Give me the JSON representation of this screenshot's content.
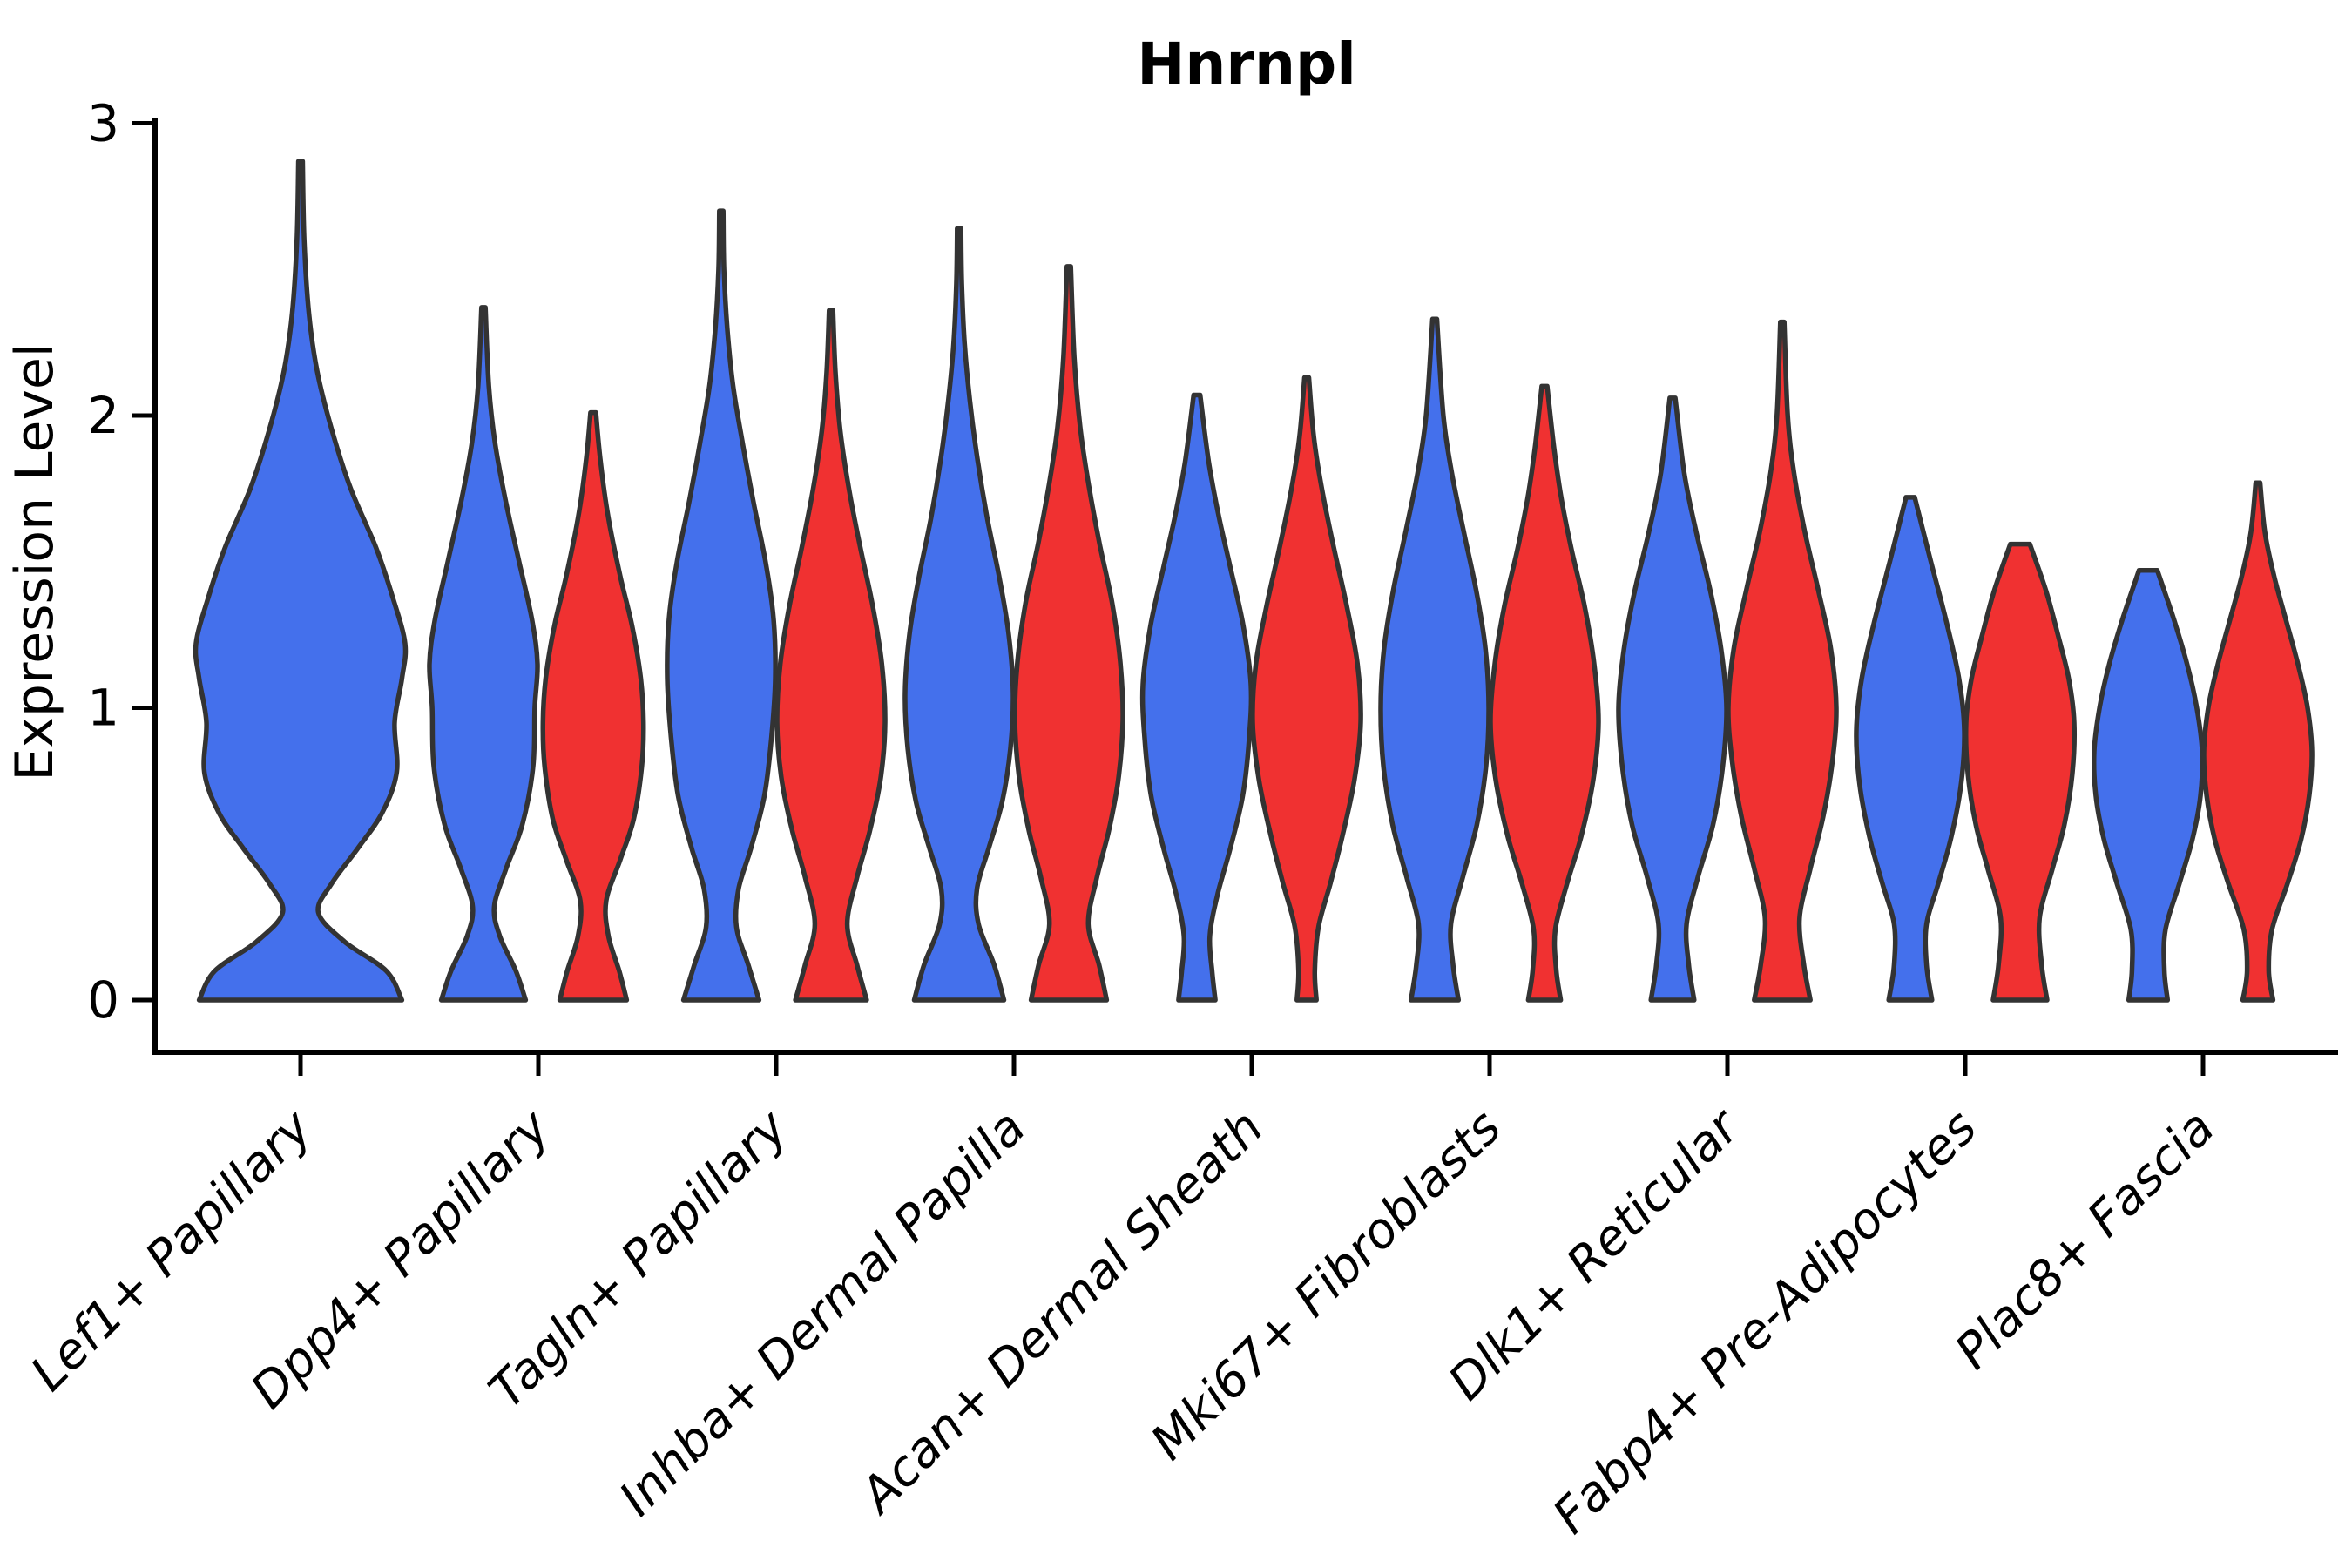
{
  "title": "Hnrnpl",
  "ylabel": "Expression Level",
  "colors": {
    "blue_group": "#4470EC",
    "red_group": "#F03131",
    "violin_outline": "#333333",
    "axis": "#000000",
    "background": "#FFFFFF"
  },
  "chart_data": {
    "type": "violin",
    "title": "Hnrnpl",
    "xlabel": "",
    "ylabel": "Expression Level",
    "ylim": [
      0,
      3
    ],
    "yticks": [
      0,
      1,
      2,
      3
    ],
    "grid": false,
    "legend": null,
    "categories": [
      "Lef1+ Papillary",
      "Dpp4+ Papillary",
      "Tagln+ Papillary",
      "Inhba+ Dermal Papilla",
      "Acan+ Dermal Sheath",
      "Mki67+ Fibroblasts",
      "Dlk1+ Reticular",
      "Fabp4+ Pre-Adipocytes",
      "Plac8+ Fascia"
    ],
    "violins": [
      {
        "category": "Lef1+ Papillary",
        "color_group": "blue",
        "span": "full",
        "max_expression": 2.87,
        "flat_top": false,
        "profile": [
          [
            0,
            0.97
          ],
          [
            0.1,
            0.82
          ],
          [
            0.2,
            0.42
          ],
          [
            0.3,
            0.17
          ],
          [
            0.4,
            0.3
          ],
          [
            0.52,
            0.55
          ],
          [
            0.64,
            0.78
          ],
          [
            0.78,
            0.92
          ],
          [
            0.95,
            0.9
          ],
          [
            1.1,
            0.97
          ],
          [
            1.22,
            1.0
          ],
          [
            1.38,
            0.88
          ],
          [
            1.55,
            0.72
          ],
          [
            1.75,
            0.48
          ],
          [
            1.95,
            0.3
          ],
          [
            2.15,
            0.16
          ],
          [
            2.35,
            0.08
          ],
          [
            2.6,
            0.035
          ],
          [
            2.87,
            0.02
          ]
        ]
      },
      {
        "category": "Dpp4+ Papillary",
        "color_group": "blue",
        "span": "half-left",
        "max_expression": 2.37,
        "flat_top": false,
        "profile": [
          [
            0,
            0.78
          ],
          [
            0.1,
            0.6
          ],
          [
            0.22,
            0.3
          ],
          [
            0.32,
            0.2
          ],
          [
            0.45,
            0.42
          ],
          [
            0.6,
            0.72
          ],
          [
            0.8,
            0.92
          ],
          [
            1.0,
            0.95
          ],
          [
            1.15,
            1.0
          ],
          [
            1.3,
            0.9
          ],
          [
            1.5,
            0.66
          ],
          [
            1.7,
            0.42
          ],
          [
            1.9,
            0.22
          ],
          [
            2.1,
            0.1
          ],
          [
            2.37,
            0.035
          ]
        ]
      },
      {
        "category": "Dpp4+ Papillary",
        "color_group": "red",
        "span": "half-right",
        "max_expression": 2.01,
        "flat_top": false,
        "profile": [
          [
            0,
            0.62
          ],
          [
            0.1,
            0.48
          ],
          [
            0.22,
            0.28
          ],
          [
            0.34,
            0.24
          ],
          [
            0.48,
            0.5
          ],
          [
            0.62,
            0.75
          ],
          [
            0.8,
            0.9
          ],
          [
            0.95,
            0.93
          ],
          [
            1.1,
            0.88
          ],
          [
            1.28,
            0.72
          ],
          [
            1.45,
            0.5
          ],
          [
            1.65,
            0.28
          ],
          [
            1.85,
            0.13
          ],
          [
            2.01,
            0.05
          ]
        ]
      },
      {
        "category": "Tagln+ Papillary",
        "color_group": "blue",
        "span": "half-left",
        "max_expression": 2.7,
        "flat_top": false,
        "profile": [
          [
            0,
            0.7
          ],
          [
            0.12,
            0.5
          ],
          [
            0.25,
            0.28
          ],
          [
            0.38,
            0.32
          ],
          [
            0.52,
            0.55
          ],
          [
            0.7,
            0.8
          ],
          [
            0.9,
            0.93
          ],
          [
            1.1,
            1.0
          ],
          [
            1.3,
            0.97
          ],
          [
            1.5,
            0.82
          ],
          [
            1.7,
            0.6
          ],
          [
            1.9,
            0.4
          ],
          [
            2.1,
            0.22
          ],
          [
            2.3,
            0.11
          ],
          [
            2.5,
            0.05
          ],
          [
            2.7,
            0.02
          ]
        ]
      },
      {
        "category": "Tagln+ Papillary",
        "color_group": "red",
        "span": "half-right",
        "max_expression": 2.36,
        "flat_top": false,
        "profile": [
          [
            0,
            0.66
          ],
          [
            0.12,
            0.48
          ],
          [
            0.26,
            0.3
          ],
          [
            0.42,
            0.48
          ],
          [
            0.58,
            0.72
          ],
          [
            0.76,
            0.92
          ],
          [
            0.95,
            1.0
          ],
          [
            1.15,
            0.94
          ],
          [
            1.35,
            0.77
          ],
          [
            1.55,
            0.54
          ],
          [
            1.75,
            0.33
          ],
          [
            1.95,
            0.17
          ],
          [
            2.15,
            0.08
          ],
          [
            2.36,
            0.03
          ]
        ]
      },
      {
        "category": "Inhba+ Dermal Papilla",
        "color_group": "blue",
        "span": "half-left",
        "max_expression": 2.64,
        "flat_top": false,
        "profile": [
          [
            0,
            0.83
          ],
          [
            0.12,
            0.65
          ],
          [
            0.26,
            0.36
          ],
          [
            0.38,
            0.33
          ],
          [
            0.52,
            0.55
          ],
          [
            0.68,
            0.8
          ],
          [
            0.86,
            0.95
          ],
          [
            1.05,
            1.0
          ],
          [
            1.25,
            0.92
          ],
          [
            1.45,
            0.74
          ],
          [
            1.65,
            0.52
          ],
          [
            1.85,
            0.34
          ],
          [
            2.05,
            0.2
          ],
          [
            2.25,
            0.1
          ],
          [
            2.45,
            0.05
          ],
          [
            2.64,
            0.02
          ]
        ]
      },
      {
        "category": "Inhba+ Dermal Papilla",
        "color_group": "red",
        "span": "half-right",
        "max_expression": 2.51,
        "flat_top": false,
        "profile": [
          [
            0,
            0.7
          ],
          [
            0.12,
            0.56
          ],
          [
            0.26,
            0.36
          ],
          [
            0.42,
            0.52
          ],
          [
            0.58,
            0.74
          ],
          [
            0.76,
            0.92
          ],
          [
            0.96,
            1.0
          ],
          [
            1.16,
            0.95
          ],
          [
            1.36,
            0.8
          ],
          [
            1.56,
            0.57
          ],
          [
            1.76,
            0.37
          ],
          [
            1.96,
            0.21
          ],
          [
            2.2,
            0.1
          ],
          [
            2.51,
            0.03
          ]
        ]
      },
      {
        "category": "Acan+ Dermal Sheath",
        "color_group": "blue",
        "span": "half-left",
        "max_expression": 2.07,
        "flat_top": false,
        "profile": [
          [
            0,
            0.34
          ],
          [
            0.1,
            0.28
          ],
          [
            0.22,
            0.24
          ],
          [
            0.36,
            0.38
          ],
          [
            0.52,
            0.62
          ],
          [
            0.7,
            0.85
          ],
          [
            0.9,
            0.97
          ],
          [
            1.08,
            1.0
          ],
          [
            1.28,
            0.86
          ],
          [
            1.48,
            0.62
          ],
          [
            1.66,
            0.4
          ],
          [
            1.84,
            0.22
          ],
          [
            2.07,
            0.06
          ]
        ]
      },
      {
        "category": "Acan+ Dermal Sheath",
        "color_group": "red",
        "span": "half-right",
        "max_expression": 2.13,
        "flat_top": false,
        "profile": [
          [
            0,
            0.18
          ],
          [
            0.1,
            0.15
          ],
          [
            0.25,
            0.22
          ],
          [
            0.4,
            0.44
          ],
          [
            0.56,
            0.66
          ],
          [
            0.75,
            0.88
          ],
          [
            0.95,
            1.0
          ],
          [
            1.15,
            0.94
          ],
          [
            1.35,
            0.74
          ],
          [
            1.55,
            0.5
          ],
          [
            1.75,
            0.28
          ],
          [
            1.93,
            0.13
          ],
          [
            2.13,
            0.04
          ]
        ]
      },
      {
        "category": "Mki67+ Fibroblasts",
        "color_group": "blue",
        "span": "half-left",
        "max_expression": 2.33,
        "flat_top": false,
        "profile": [
          [
            0,
            0.44
          ],
          [
            0.12,
            0.34
          ],
          [
            0.26,
            0.3
          ],
          [
            0.42,
            0.52
          ],
          [
            0.6,
            0.78
          ],
          [
            0.8,
            0.95
          ],
          [
            1.0,
            1.0
          ],
          [
            1.2,
            0.94
          ],
          [
            1.4,
            0.77
          ],
          [
            1.6,
            0.54
          ],
          [
            1.8,
            0.32
          ],
          [
            2.0,
            0.16
          ],
          [
            2.33,
            0.04
          ]
        ]
      },
      {
        "category": "Mki67+ Fibroblasts",
        "color_group": "red",
        "span": "half-right",
        "max_expression": 2.1,
        "flat_top": false,
        "profile": [
          [
            0,
            0.3
          ],
          [
            0.1,
            0.22
          ],
          [
            0.24,
            0.2
          ],
          [
            0.4,
            0.42
          ],
          [
            0.56,
            0.68
          ],
          [
            0.75,
            0.9
          ],
          [
            0.95,
            1.0
          ],
          [
            1.15,
            0.92
          ],
          [
            1.35,
            0.74
          ],
          [
            1.55,
            0.49
          ],
          [
            1.73,
            0.3
          ],
          [
            1.9,
            0.17
          ],
          [
            2.1,
            0.05
          ]
        ]
      },
      {
        "category": "Dlk1+ Reticular",
        "color_group": "blue",
        "span": "half-left",
        "max_expression": 2.06,
        "flat_top": false,
        "profile": [
          [
            0,
            0.4
          ],
          [
            0.12,
            0.3
          ],
          [
            0.26,
            0.26
          ],
          [
            0.42,
            0.47
          ],
          [
            0.6,
            0.75
          ],
          [
            0.8,
            0.93
          ],
          [
            1.0,
            1.0
          ],
          [
            1.2,
            0.9
          ],
          [
            1.4,
            0.7
          ],
          [
            1.6,
            0.44
          ],
          [
            1.8,
            0.22
          ],
          [
            2.06,
            0.05
          ]
        ]
      },
      {
        "category": "Dlk1+ Reticular",
        "color_group": "red",
        "span": "half-right",
        "max_expression": 2.32,
        "flat_top": false,
        "profile": [
          [
            0,
            0.52
          ],
          [
            0.12,
            0.4
          ],
          [
            0.28,
            0.32
          ],
          [
            0.45,
            0.52
          ],
          [
            0.63,
            0.76
          ],
          [
            0.82,
            0.93
          ],
          [
            1.0,
            1.0
          ],
          [
            1.2,
            0.9
          ],
          [
            1.4,
            0.67
          ],
          [
            1.6,
            0.42
          ],
          [
            1.8,
            0.22
          ],
          [
            2.0,
            0.1
          ],
          [
            2.32,
            0.03
          ]
        ]
      },
      {
        "category": "Fabp4+ Pre-Adipocytes",
        "color_group": "blue",
        "span": "half-left",
        "max_expression": 1.72,
        "flat_top": false,
        "profile": [
          [
            0,
            0.4
          ],
          [
            0.12,
            0.3
          ],
          [
            0.26,
            0.3
          ],
          [
            0.4,
            0.52
          ],
          [
            0.56,
            0.76
          ],
          [
            0.74,
            0.94
          ],
          [
            0.92,
            1.0
          ],
          [
            1.1,
            0.9
          ],
          [
            1.3,
            0.66
          ],
          [
            1.5,
            0.38
          ],
          [
            1.72,
            0.08
          ]
        ]
      },
      {
        "category": "Fabp4+ Pre-Adipocytes",
        "color_group": "red",
        "span": "half-right",
        "max_expression": 1.56,
        "flat_top": true,
        "profile": [
          [
            0,
            0.5
          ],
          [
            0.12,
            0.4
          ],
          [
            0.28,
            0.36
          ],
          [
            0.45,
            0.6
          ],
          [
            0.6,
            0.82
          ],
          [
            0.78,
            0.97
          ],
          [
            0.95,
            1.0
          ],
          [
            1.1,
            0.9
          ],
          [
            1.25,
            0.7
          ],
          [
            1.4,
            0.48
          ],
          [
            1.56,
            0.18
          ]
        ]
      },
      {
        "category": "Plac8+ Fascia",
        "color_group": "blue",
        "span": "half-left",
        "max_expression": 1.47,
        "flat_top": true,
        "profile": [
          [
            0,
            0.36
          ],
          [
            0.1,
            0.3
          ],
          [
            0.24,
            0.32
          ],
          [
            0.4,
            0.58
          ],
          [
            0.55,
            0.82
          ],
          [
            0.7,
            0.97
          ],
          [
            0.85,
            1.0
          ],
          [
            1.0,
            0.9
          ],
          [
            1.15,
            0.72
          ],
          [
            1.3,
            0.48
          ],
          [
            1.47,
            0.17
          ]
        ]
      },
      {
        "category": "Plac8+ Fascia",
        "color_group": "red",
        "span": "half-right",
        "max_expression": 1.77,
        "flat_top": false,
        "profile": [
          [
            0,
            0.28
          ],
          [
            0.1,
            0.2
          ],
          [
            0.24,
            0.26
          ],
          [
            0.4,
            0.55
          ],
          [
            0.55,
            0.8
          ],
          [
            0.7,
            0.95
          ],
          [
            0.85,
            1.0
          ],
          [
            1.0,
            0.92
          ],
          [
            1.15,
            0.74
          ],
          [
            1.3,
            0.52
          ],
          [
            1.45,
            0.3
          ],
          [
            1.6,
            0.13
          ],
          [
            1.77,
            0.04
          ]
        ]
      }
    ]
  }
}
